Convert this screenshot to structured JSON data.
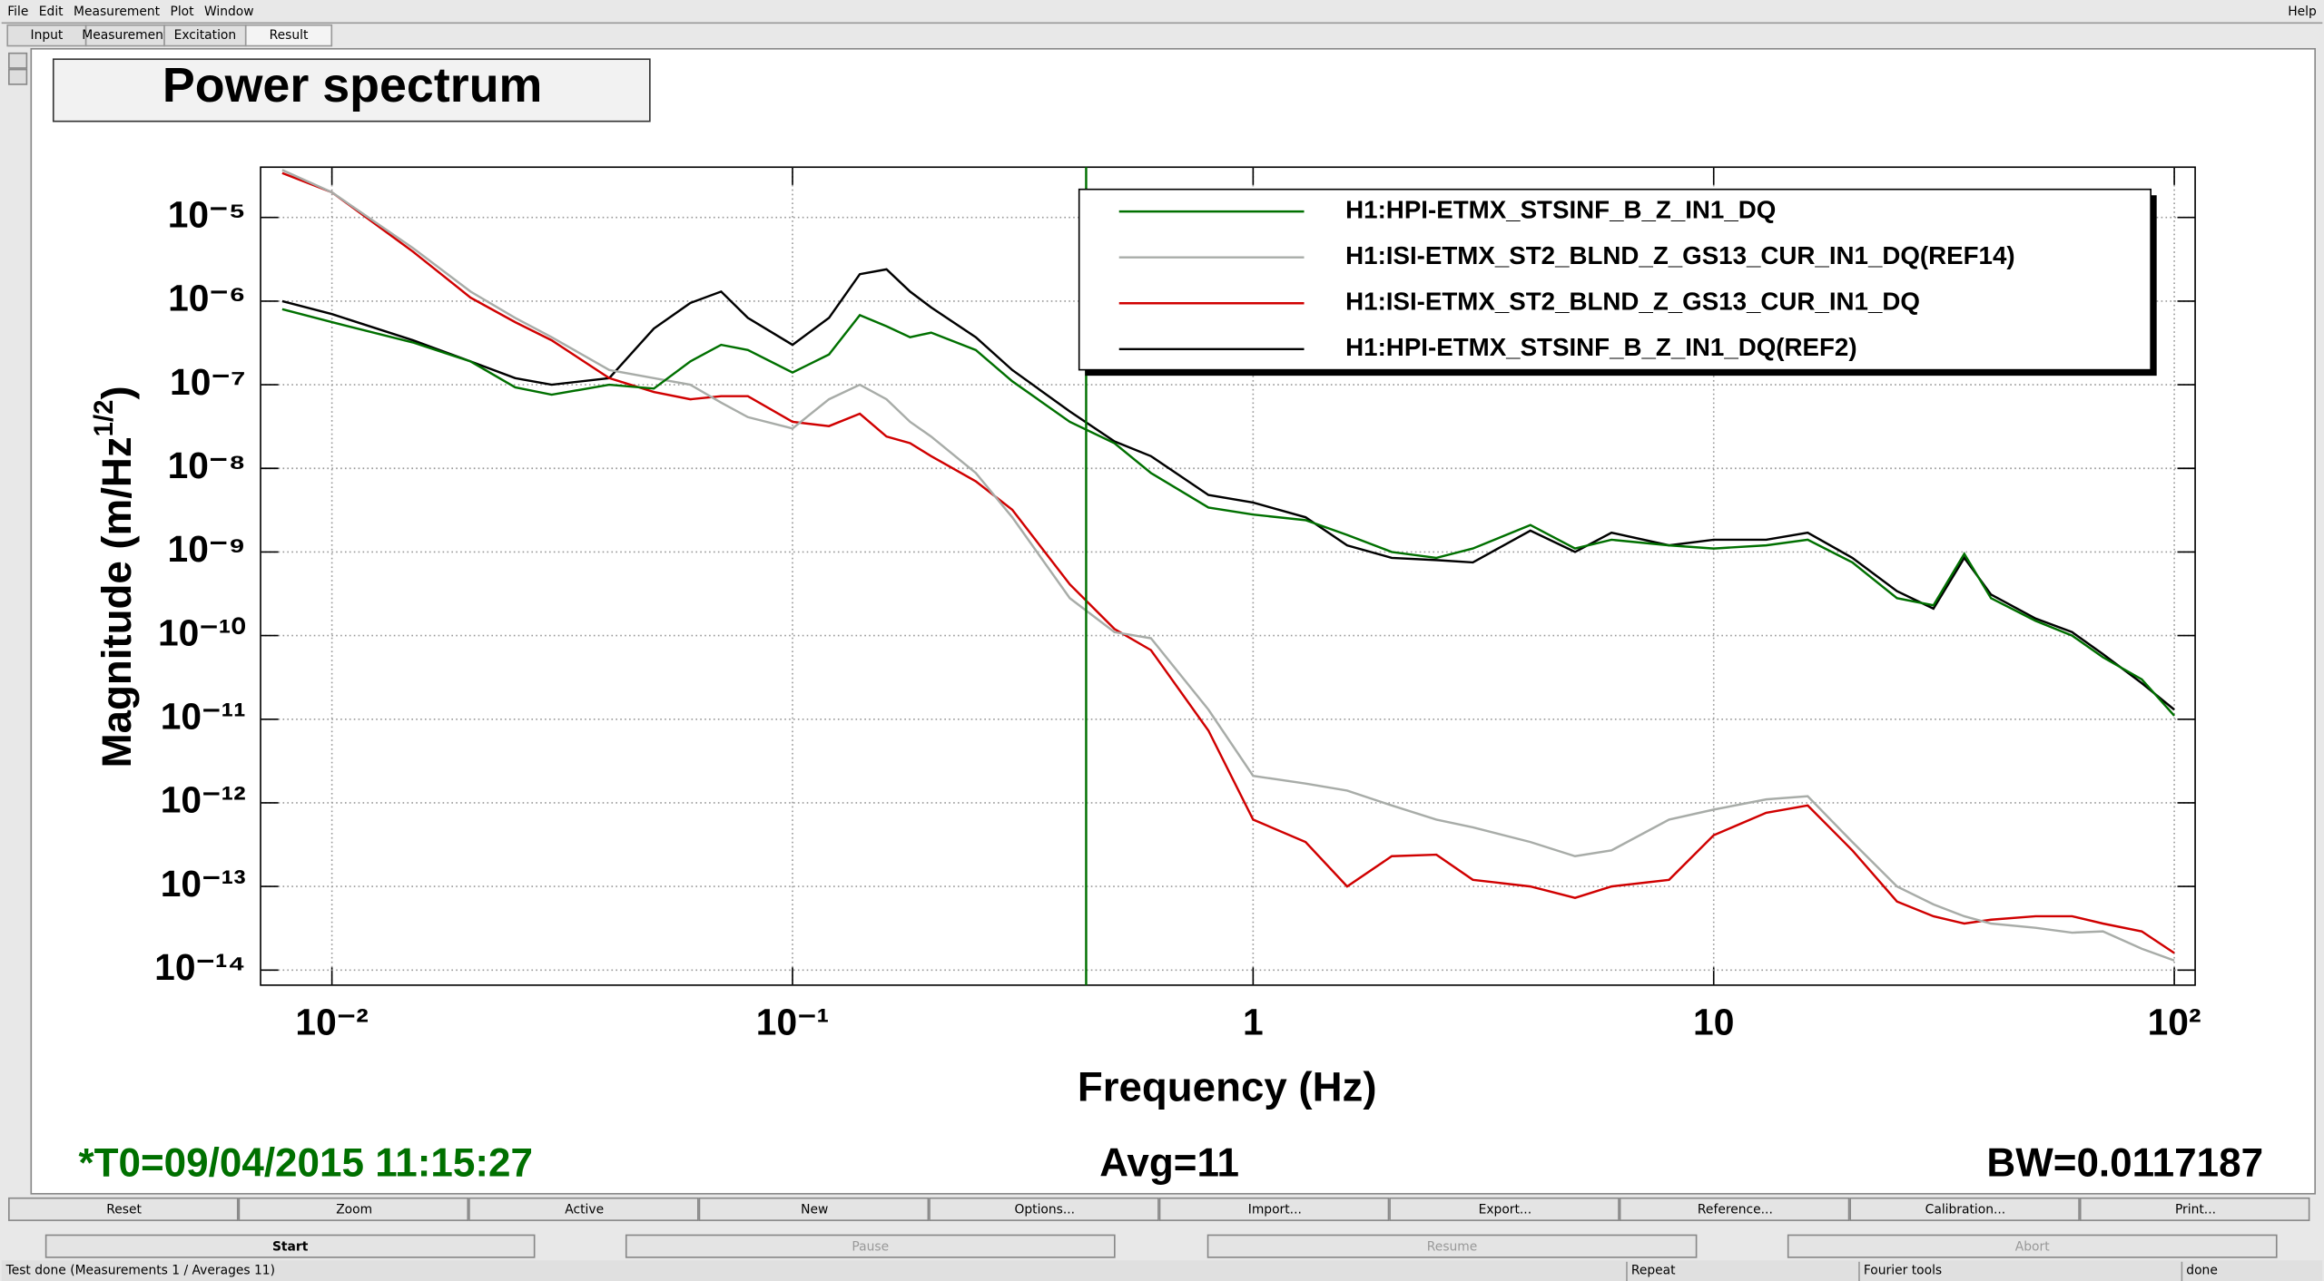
{
  "menu": [
    "File",
    "Edit",
    "Measurement",
    "Plot",
    "Window"
  ],
  "help": "Help",
  "tabs": [
    "Input",
    "Measurement",
    "Excitation",
    "Result"
  ],
  "chart_data": {
    "type": "line",
    "title": "Power spectrum",
    "xlabel": "Frequency (Hz)",
    "ylabel": [
      "Magnitude (m/Hz",
      "1/2",
      ")"
    ],
    "xscale": "log",
    "yscale": "log",
    "grid": true,
    "legend": "upper right",
    "xlim": [
      0.007,
      111
    ],
    "ylim": [
      6.6e-15,
      4e-05
    ],
    "xticks": [
      {
        "value": 0.01,
        "label": "10⁻²"
      },
      {
        "value": 0.1,
        "label": "10⁻¹"
      },
      1,
      10,
      {
        "value": 100,
        "label": "10²"
      }
    ],
    "yticks": [
      {
        "value": 1e-14,
        "label": "10⁻¹⁴"
      },
      {
        "value": 1e-13,
        "label": "10⁻¹³"
      },
      {
        "value": 1e-12,
        "label": "10⁻¹²"
      },
      {
        "value": 1e-11,
        "label": "10⁻¹¹"
      },
      {
        "value": 1e-10,
        "label": "10⁻¹⁰"
      },
      {
        "value": 1e-09,
        "label": "10⁻⁹"
      },
      {
        "value": 1e-08,
        "label": "10⁻⁸"
      },
      {
        "value": 1e-07,
        "label": "10⁻⁷"
      },
      {
        "value": 1e-06,
        "label": "10⁻⁶"
      },
      {
        "value": 1e-05,
        "label": "10⁻⁵"
      }
    ],
    "cursor": {
      "x": 0.434,
      "color": "#007000"
    },
    "x": [
      0.0078,
      0.01,
      0.015,
      0.02,
      0.025,
      0.03,
      0.04,
      0.05,
      0.06,
      0.07,
      0.08,
      0.1,
      0.12,
      0.14,
      0.16,
      0.18,
      0.2,
      0.25,
      0.3,
      0.4,
      0.5,
      0.6,
      0.8,
      1,
      1.3,
      1.6,
      2,
      2.5,
      3,
      4,
      5,
      6,
      8,
      10,
      13,
      16,
      20,
      25,
      30,
      35,
      40,
      50,
      60,
      70,
      85,
      100
    ],
    "series": [
      {
        "name": "H1:HPI-ETMX_STSINF_B_Z_IN1_DQ",
        "color": "#007000",
        "values": [
          8e-07,
          5.6e-07,
          3.2e-07,
          1.9e-07,
          9.3e-08,
          7.6e-08,
          1e-07,
          9e-08,
          1.9e-07,
          3e-07,
          2.6e-07,
          1.4e-07,
          2.3e-07,
          6.8e-07,
          5e-07,
          3.7e-07,
          4.2e-07,
          2.6e-07,
          1.1e-07,
          3.6e-08,
          2e-08,
          8.8e-09,
          3.4e-09,
          2.8e-09,
          2.4e-09,
          1.6e-09,
          1e-09,
          8.5e-10,
          1.1e-09,
          2.1e-09,
          1.1e-09,
          1.4e-09,
          1.2e-09,
          1.1e-09,
          1.2e-09,
          1.4e-09,
          7.5e-10,
          2.8e-10,
          2.3e-10,
          9.5e-10,
          2.8e-10,
          1.5e-10,
          1e-10,
          5.5e-11,
          3e-11,
          1.1e-11
        ]
      },
      {
        "name": "H1:ISI-ETMX_ST2_BLND_Z_GS13_CUR_IN1_DQ(REF14)",
        "color": "#a8aca8",
        "values": [
          3.7e-05,
          2e-05,
          4.3e-06,
          1.3e-06,
          6.3e-07,
          3.7e-07,
          1.5e-07,
          1.2e-07,
          1e-07,
          6.1e-08,
          4.1e-08,
          3e-08,
          6.7e-08,
          1e-07,
          6.7e-08,
          3.6e-08,
          2.4e-08,
          8.8e-09,
          2.6e-09,
          2.8e-10,
          1.1e-10,
          9.3e-11,
          1.3e-11,
          2.1e-12,
          1.7e-12,
          1.4e-12,
          9.3e-13,
          6.3e-13,
          5.1e-13,
          3.4e-13,
          2.3e-13,
          2.7e-13,
          6.3e-13,
          8.3e-13,
          1.1e-12,
          1.2e-12,
          3.4e-13,
          1e-13,
          6.1e-14,
          4.4e-14,
          3.6e-14,
          3.2e-14,
          2.8e-14,
          2.9e-14,
          1.8e-14,
          1.3e-14
        ]
      },
      {
        "name": "H1:ISI-ETMX_ST2_BLND_Z_GS13_CUR_IN1_DQ",
        "color": "#d00000",
        "values": [
          3.4e-05,
          2e-05,
          3.9e-06,
          1.1e-06,
          5.6e-07,
          3.4e-07,
          1.2e-07,
          8.2e-08,
          6.7e-08,
          7.3e-08,
          7.3e-08,
          3.6e-08,
          3.2e-08,
          4.5e-08,
          2.4e-08,
          2e-08,
          1.4e-08,
          7e-09,
          3.2e-09,
          4.1e-10,
          1.2e-10,
          6.7e-11,
          7.3e-12,
          6.3e-13,
          3.4e-13,
          1e-13,
          2.3e-13,
          2.4e-13,
          1.2e-13,
          1e-13,
          7.3e-14,
          1e-13,
          1.2e-13,
          4.1e-13,
          7.6e-13,
          9.3e-13,
          2.7e-13,
          6.6e-14,
          4.4e-14,
          3.6e-14,
          4e-14,
          4.4e-14,
          4.4e-14,
          3.6e-14,
          2.9e-14,
          1.6e-14
        ]
      },
      {
        "name": "H1:HPI-ETMX_STSINF_B_Z_IN1_DQ(REF2)",
        "color": "#000000",
        "values": [
          1e-06,
          7e-07,
          3.4e-07,
          1.9e-07,
          1.2e-07,
          1e-07,
          1.2e-07,
          4.7e-07,
          9.5e-07,
          1.3e-06,
          6.3e-07,
          3e-07,
          6.3e-07,
          2.1e-06,
          2.4e-06,
          1.3e-06,
          8.4e-07,
          3.7e-07,
          1.5e-07,
          4.8e-08,
          2.1e-08,
          1.4e-08,
          4.8e-09,
          3.9e-09,
          2.6e-09,
          1.2e-09,
          8.5e-10,
          8e-10,
          7.5e-10,
          1.8e-09,
          1e-09,
          1.7e-09,
          1.2e-09,
          1.4e-09,
          1.4e-09,
          1.7e-09,
          8.5e-10,
          3.4e-10,
          2.1e-10,
          8.5e-10,
          3.1e-10,
          1.6e-10,
          1.1e-10,
          6e-11,
          2.7e-11,
          1.3e-11
        ]
      }
    ]
  },
  "info": {
    "t0": "*T0=09/04/2015 11:15:27",
    "avg": "Avg=11",
    "bw": "BW=0.0117187"
  },
  "buttons": [
    "Reset",
    "Zoom",
    "Active",
    "New",
    "Options...",
    "Import...",
    "Export...",
    "Reference...",
    "Calibration...",
    "Print..."
  ],
  "controls": [
    "Start",
    "Pause",
    "Resume",
    "Abort"
  ],
  "status": [
    "Test done (Measurements 1 / Averages 11)",
    "Repeat",
    "Fourier tools",
    "done"
  ]
}
